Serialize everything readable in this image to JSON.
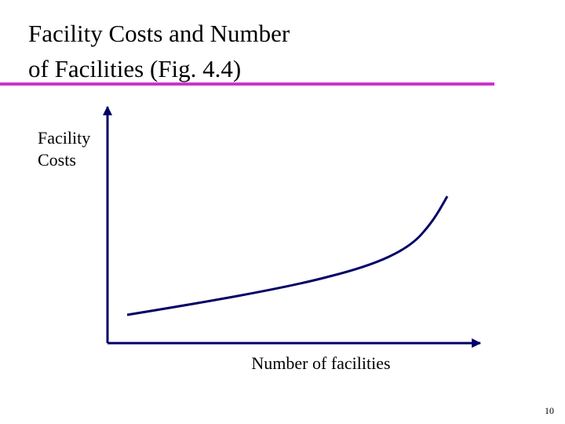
{
  "slide": {
    "title_lines": [
      "Facility Costs and Number",
      "of Facilities (Fig. 4.4)"
    ],
    "y_axis_label_lines": [
      "Facility",
      "Costs"
    ],
    "x_axis_label": "Number of facilities",
    "page_number": "10"
  }
}
